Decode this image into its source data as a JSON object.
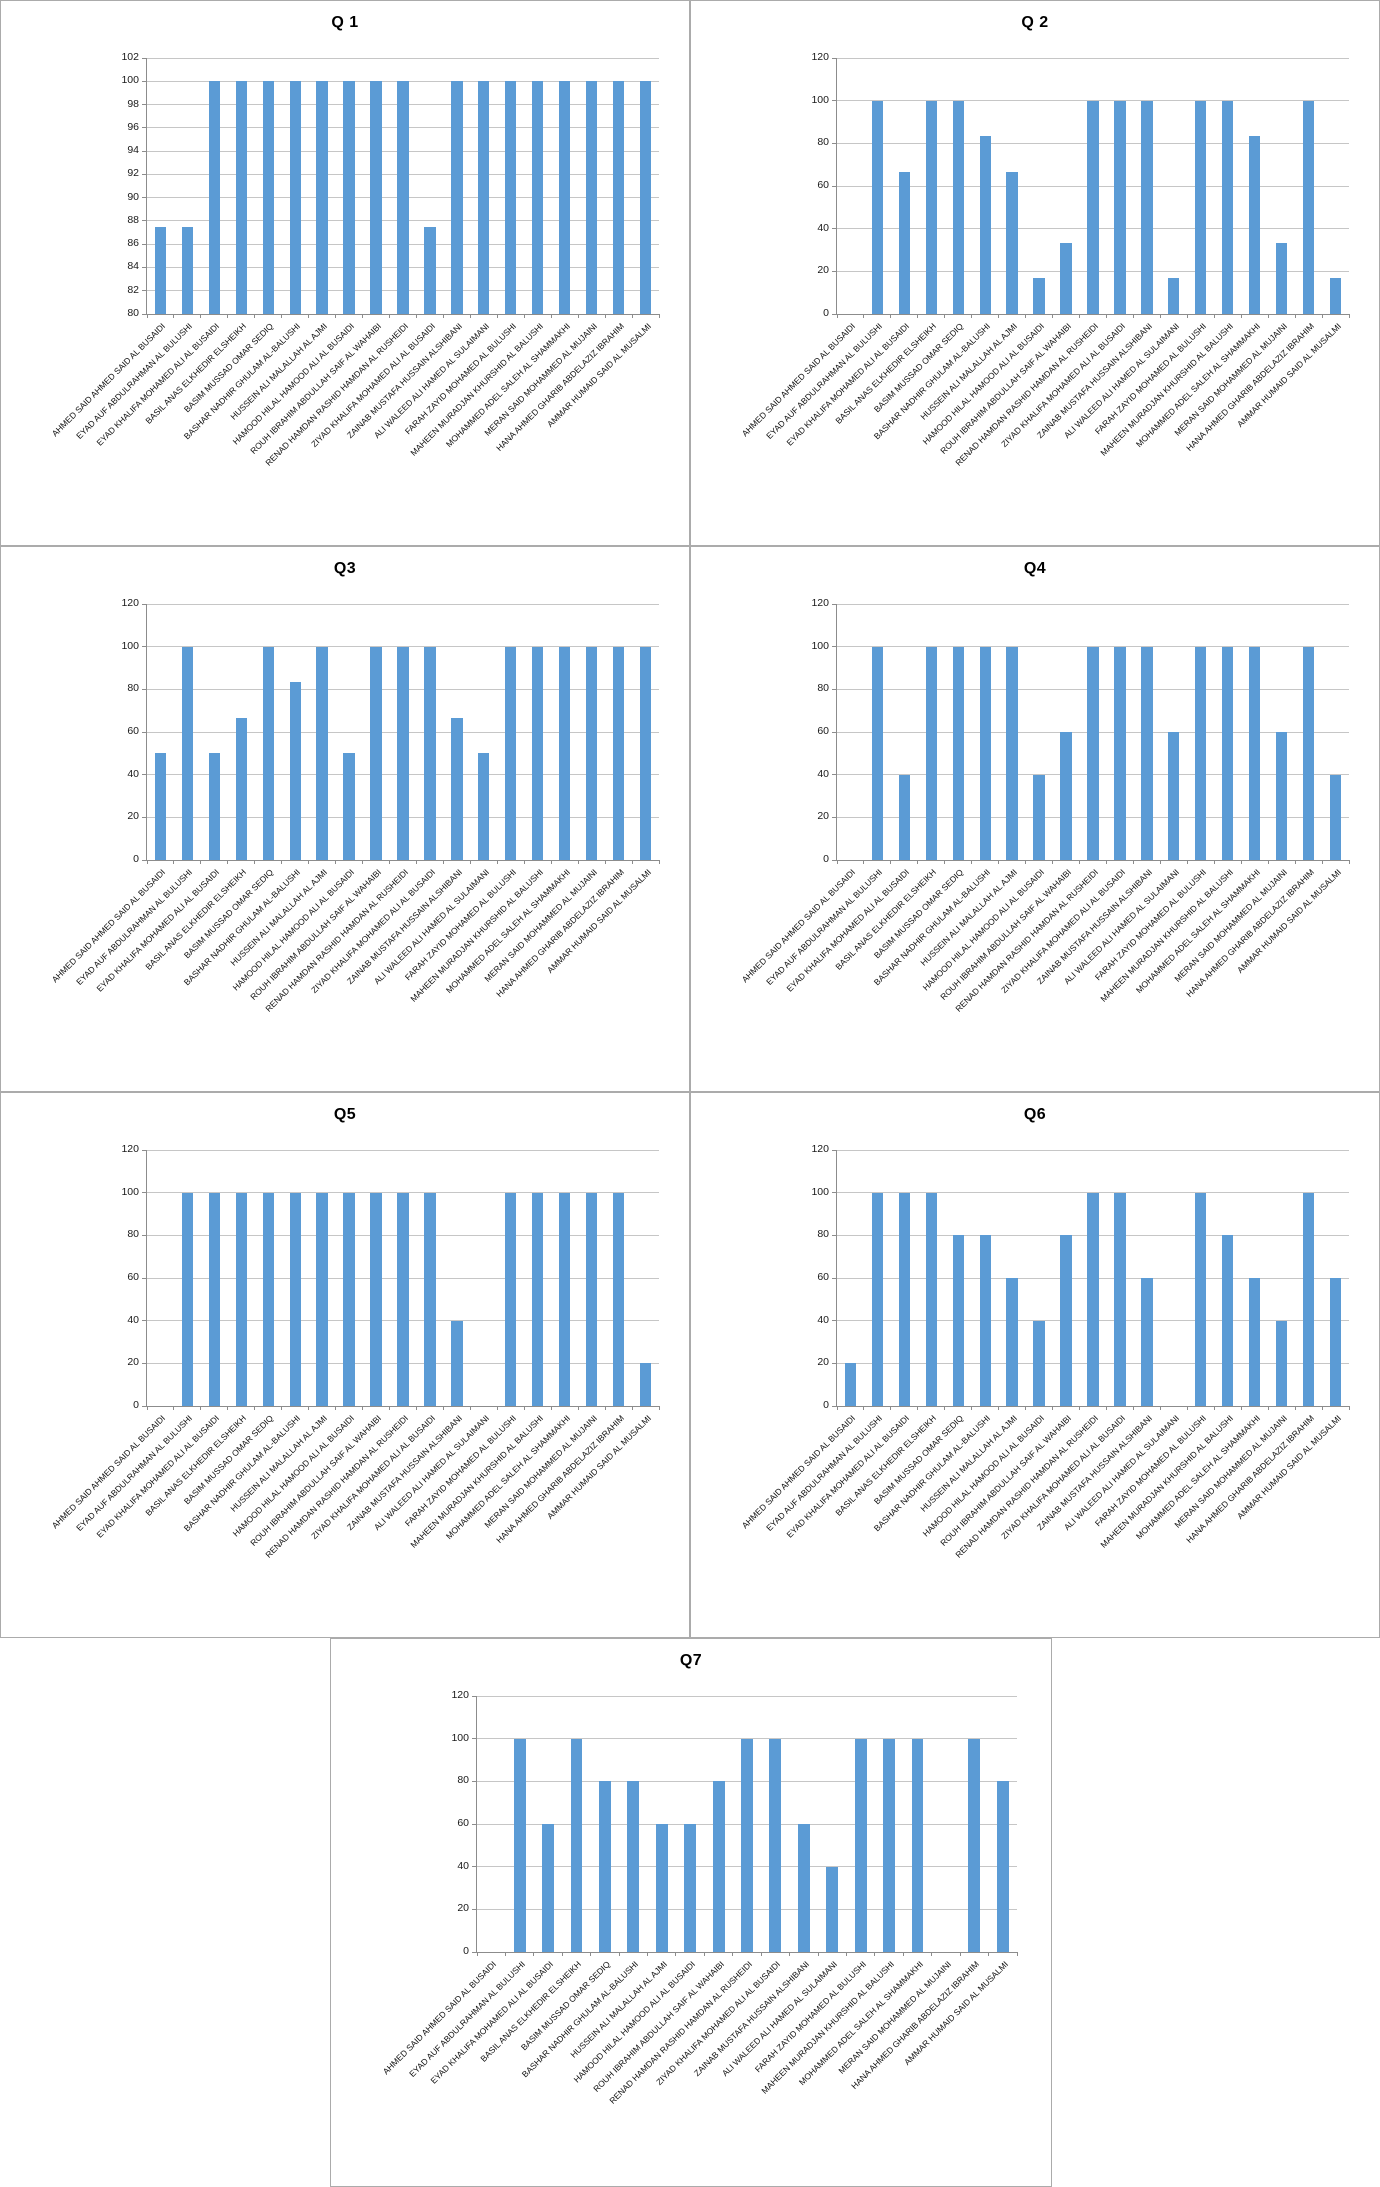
{
  "chart_data": {
    "type": "bar",
    "grid": true,
    "legend": false,
    "bar_color": "#5b9bd5",
    "gridline_color": "#c6c6c6",
    "axis_color": "#8c8c8c",
    "panel_border_color": "#ababab",
    "categories": [
      "AHMED SAID AHMED SAID AL BUSAIDI",
      "EYAD AUF ABDULRAHMAN AL BULUSHI",
      "EYAD KHALIFA MOHAMED ALI AL BUSAIDI",
      "BASIL ANAS ELKHEDIR ELSHEIKH",
      "BASIM MUSSAD OMAR SEDIQ",
      "BASHAR NADHIR GHULAM AL-BALUSHI",
      "HUSSEIN ALI MALALLAH AL AJMI",
      "HAMOOD HILAL HAMOOD ALI AL BUSAIDI",
      "ROUH IBRAHIM ABDULLAH SAIF AL WAHAIBI",
      "RENAD HAMDAN RASHID HAMDAN AL RUSHEIDI",
      "ZIYAD KHALIFA MOHAMED ALI AL BUSAIDI",
      "ZAINAB MUSTAFA HUSSAIN ALSHIBANI",
      "ALI WALEED ALI HAMED AL SULAIMANI",
      "FARAH ZAYID MOHAMED AL BULUSHI",
      "MAHEEN MURADJAN KHURSHID AL BALUSHI",
      "MOHAMMED ADEL SALEH AL SHAMMAKHI",
      "MERAN SAID MOHAMMED AL MUJAINI",
      "HANA AHMED GHARIB ABDELAZIZ IBRAHIM",
      "AMMAR HUMAID SAID AL MUSALMI"
    ],
    "charts": [
      {
        "title": "Q 1",
        "ylim": [
          80,
          102
        ],
        "ytick_step": 2,
        "values": [
          87.5,
          87.5,
          100,
          100,
          100,
          100,
          100,
          100,
          100,
          100,
          87.5,
          100,
          100,
          100,
          100,
          100,
          100,
          100,
          100
        ]
      },
      {
        "title": "Q 2",
        "ylim": [
          0,
          120
        ],
        "ytick_step": 20,
        "values": [
          null,
          100,
          66.7,
          100,
          100,
          83.3,
          66.7,
          16.7,
          33.3,
          100,
          100,
          100,
          16.7,
          100,
          100,
          83.3,
          33.3,
          100,
          16.7
        ]
      },
      {
        "title": "Q3",
        "ylim": [
          0,
          120
        ],
        "ytick_step": 20,
        "values": [
          50,
          100,
          50,
          66.7,
          100,
          83.3,
          100,
          50,
          100,
          100,
          100,
          66.7,
          50,
          100,
          100,
          100,
          100,
          100,
          100
        ]
      },
      {
        "title": "Q4",
        "ylim": [
          0,
          120
        ],
        "ytick_step": 20,
        "values": [
          null,
          100,
          40,
          100,
          100,
          100,
          100,
          40,
          60,
          100,
          100,
          100,
          60,
          100,
          100,
          100,
          60,
          100,
          40
        ]
      },
      {
        "title": "Q5",
        "ylim": [
          0,
          120
        ],
        "ytick_step": 20,
        "values": [
          null,
          100,
          100,
          100,
          100,
          100,
          100,
          100,
          100,
          100,
          100,
          40,
          null,
          100,
          100,
          100,
          100,
          100,
          20
        ]
      },
      {
        "title": "Q6",
        "ylim": [
          0,
          120
        ],
        "ytick_step": 20,
        "values": [
          20,
          100,
          100,
          100,
          80,
          80,
          60,
          40,
          80,
          100,
          100,
          60,
          null,
          100,
          80,
          60,
          40,
          100,
          60
        ]
      },
      {
        "title": "Q7",
        "ylim": [
          0,
          120
        ],
        "ytick_step": 20,
        "values": [
          null,
          100,
          60,
          100,
          80,
          80,
          60,
          60,
          80,
          100,
          100,
          60,
          40,
          100,
          100,
          100,
          null,
          100,
          80
        ]
      }
    ]
  }
}
